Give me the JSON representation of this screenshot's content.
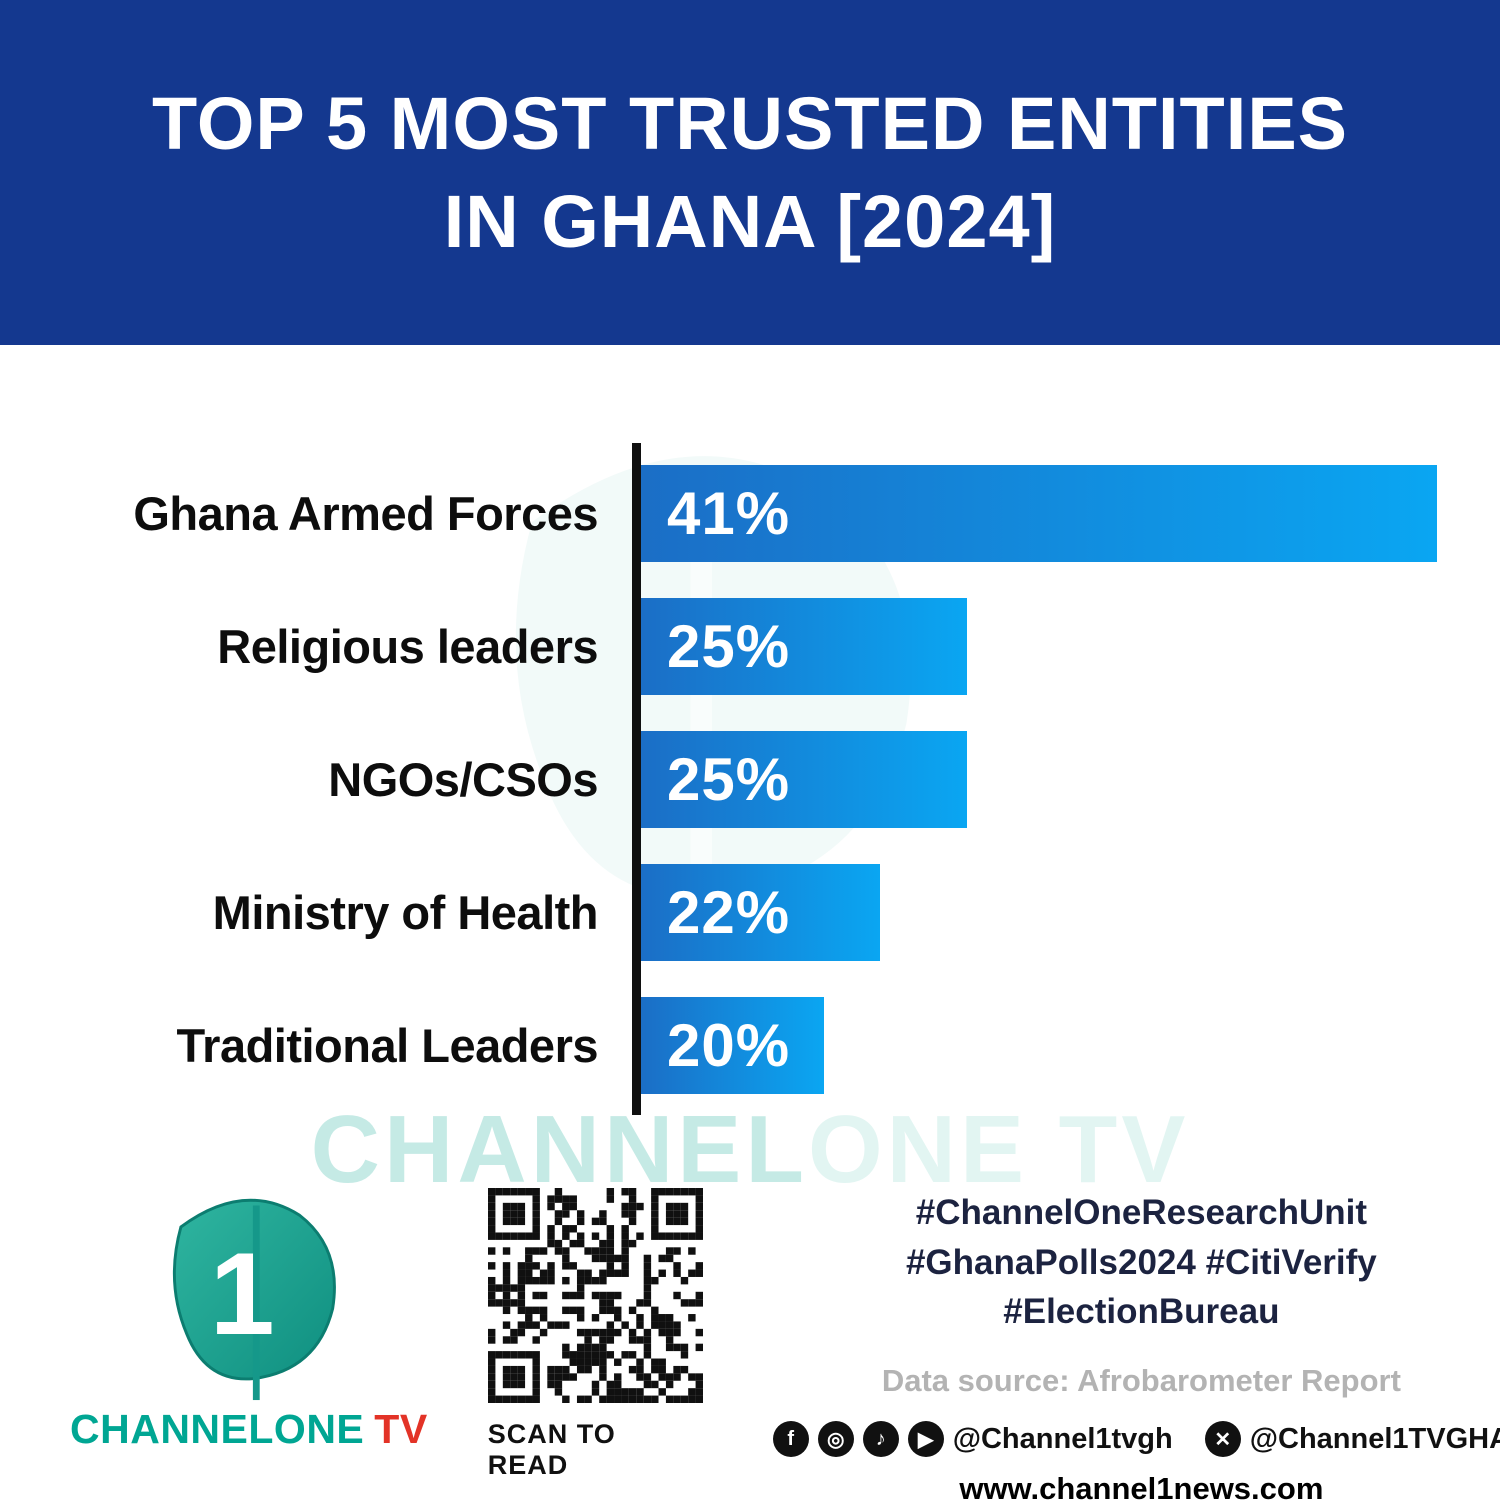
{
  "header": {
    "title_line1": "TOP 5 MOST TRUSTED ENTITIES",
    "title_line2": "IN GHANA [2024]"
  },
  "chart_data": {
    "type": "bar",
    "orientation": "horizontal",
    "title": "Top 5 Most Trusted Entities in Ghana [2024]",
    "categories": [
      "Ghana Armed Forces",
      "Religious leaders",
      "NGOs/CSOs",
      "Ministry of Health",
      "Traditional Leaders"
    ],
    "values": [
      41,
      25,
      25,
      22,
      20
    ],
    "value_labels": [
      "41%",
      "25%",
      "25%",
      "22%",
      "20%"
    ],
    "unit": "%",
    "visual_widths_pct": [
      100,
      41,
      41,
      30,
      23
    ],
    "bar_gradient": [
      "#1b6ec6",
      "#0aa6f2"
    ],
    "axis_color": "#101010",
    "legend": "none",
    "grid": false
  },
  "watermark": {
    "part1": "CHANNEL",
    "part2": "ONE TV"
  },
  "footer": {
    "logo": {
      "numeral": "1",
      "brand_part1": "CHANNELONE",
      "brand_part2": "TV"
    },
    "qr": {
      "caption": "SCAN TO READ"
    },
    "hashtags": [
      "#ChannelOneResearchUnit",
      "#GhanaPolls2024 #CitiVerify",
      "#ElectionBureau"
    ],
    "data_source": "Data source: Afrobarometer Report",
    "social": {
      "handle1": "@Channel1tvgh",
      "handle2": "@Channel1TVGHA"
    },
    "website": "www.channel1news.com"
  },
  "colors": {
    "banner_bg": "#14388f",
    "brand_teal": "#00a693",
    "brand_red": "#e33327",
    "hashtag_text": "#1c2340"
  }
}
